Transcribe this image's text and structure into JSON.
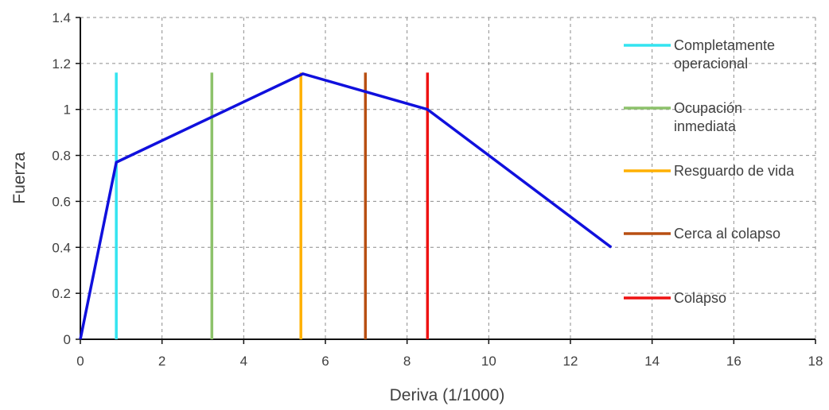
{
  "chart_data": {
    "type": "line",
    "title": "",
    "xlabel": "Deriva (1/1000)",
    "ylabel": "Fuerza",
    "xlim": [
      0,
      18
    ],
    "ylim": [
      0,
      1.4
    ],
    "xticks": [
      0,
      2,
      4,
      6,
      8,
      10,
      12,
      14,
      16,
      18
    ],
    "yticks": [
      0,
      0.2,
      0.4,
      0.6,
      0.8,
      1,
      1.2,
      1.4
    ],
    "xtick_labels": [
      "0",
      "2",
      "4",
      "6",
      "8",
      "10",
      "12",
      "14",
      "16",
      "18"
    ],
    "ytick_labels": [
      "0",
      "0.2",
      "0.4",
      "0.6",
      "0.8",
      "1",
      "1.2",
      "1.4"
    ],
    "grid": true,
    "legend_position": "right",
    "curve": {
      "color": "#1010dd",
      "x": [
        0,
        0.88,
        5.45,
        8.5,
        13.0
      ],
      "y": [
        0,
        0.77,
        1.155,
        1.0,
        0.4
      ]
    },
    "thresholds": [
      {
        "name": "Completamente operacional",
        "legend_lines": [
          "Completamente",
          "operacional"
        ],
        "x": 0.88,
        "y_top": 1.16,
        "color": "#33e4f0"
      },
      {
        "name": "Ocupación inmediata",
        "legend_lines": [
          "Ocupación",
          "inmediata"
        ],
        "x": 3.22,
        "y_top": 1.16,
        "color": "#8dc26b"
      },
      {
        "name": "Resguardo de vida",
        "legend_lines": [
          "Resguardo de vida"
        ],
        "x": 5.4,
        "y_top": 1.16,
        "color": "#ffb000"
      },
      {
        "name": "Cerca al colapso",
        "legend_lines": [
          "Cerca al colapso"
        ],
        "x": 6.98,
        "y_top": 1.16,
        "color": "#b84f12"
      },
      {
        "name": "Colapso",
        "legend_lines": [
          "Colapso"
        ],
        "x": 8.5,
        "y_top": 1.16,
        "color": "#ee1111"
      }
    ]
  }
}
